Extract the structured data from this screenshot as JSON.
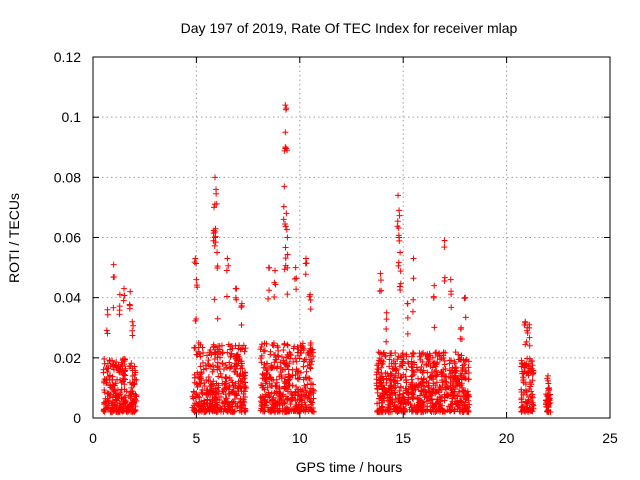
{
  "chart_data": {
    "type": "scatter",
    "title": "Day 197 of 2019, Rate Of TEC Index for receiver mlap",
    "xlabel": "GPS time / hours",
    "ylabel": "ROTI / TECUs",
    "xlim": [
      0,
      25
    ],
    "ylim": [
      0,
      0.12
    ],
    "xticks": [
      0,
      5,
      10,
      15,
      20,
      25
    ],
    "yticks": [
      0,
      0.02,
      0.04,
      0.06,
      0.08,
      0.1,
      0.12
    ],
    "xtick_labels": [
      "0",
      "5",
      "10",
      "15",
      "20",
      "25"
    ],
    "ytick_labels": [
      "0",
      "0.02",
      "0.04",
      "0.06",
      "0.08",
      "0.1",
      "0.12"
    ],
    "grid": true,
    "marker": "plus",
    "color": "#ff0000",
    "clusters": [
      {
        "x_range": [
          0.5,
          2.1
        ],
        "peak_points": [
          [
            0.7,
            0.036
          ],
          [
            1.0,
            0.051
          ],
          [
            1.3,
            0.041
          ],
          [
            1.5,
            0.043
          ],
          [
            1.8,
            0.042
          ],
          [
            1.9,
            0.032
          ]
        ],
        "typical_max": 0.02
      },
      {
        "x_range": [
          4.8,
          7.4
        ],
        "peak_points": [
          [
            4.95,
            0.053
          ],
          [
            5.0,
            0.046
          ],
          [
            5.9,
            0.08
          ],
          [
            5.95,
            0.076
          ],
          [
            5.85,
            0.07
          ],
          [
            5.9,
            0.06
          ],
          [
            6.0,
            0.055
          ],
          [
            6.5,
            0.053
          ],
          [
            6.9,
            0.043
          ],
          [
            7.2,
            0.038
          ]
        ],
        "typical_max": 0.025
      },
      {
        "x_range": [
          8.1,
          10.7
        ],
        "peak_points": [
          [
            8.5,
            0.05
          ],
          [
            8.8,
            0.049
          ],
          [
            9.3,
            0.104
          ],
          [
            9.35,
            0.103
          ],
          [
            9.3,
            0.095
          ],
          [
            9.25,
            0.077
          ],
          [
            9.35,
            0.068
          ],
          [
            9.4,
            0.06
          ],
          [
            9.8,
            0.05
          ],
          [
            10.3,
            0.053
          ],
          [
            10.5,
            0.041
          ]
        ],
        "typical_max": 0.025
      },
      {
        "x_range": [
          13.7,
          18.2
        ],
        "peak_points": [
          [
            13.9,
            0.048
          ],
          [
            14.2,
            0.035
          ],
          [
            14.75,
            0.074
          ],
          [
            14.8,
            0.069
          ],
          [
            14.8,
            0.06
          ],
          [
            14.85,
            0.055
          ],
          [
            15.2,
            0.038
          ],
          [
            15.5,
            0.053
          ],
          [
            16.5,
            0.044
          ],
          [
            17.0,
            0.059
          ],
          [
            17.3,
            0.046
          ],
          [
            17.8,
            0.03
          ],
          [
            18.0,
            0.04
          ]
        ],
        "typical_max": 0.022
      },
      {
        "x_range": [
          20.7,
          21.3
        ],
        "peak_points": [
          [
            20.9,
            0.032
          ],
          [
            21.0,
            0.03
          ],
          [
            21.1,
            0.031
          ]
        ],
        "typical_max": 0.02
      },
      {
        "x_range": [
          21.9,
          22.15
        ],
        "peak_points": [
          [
            22.0,
            0.014
          ],
          [
            22.05,
            0.01
          ]
        ],
        "typical_max": 0.008
      }
    ]
  }
}
